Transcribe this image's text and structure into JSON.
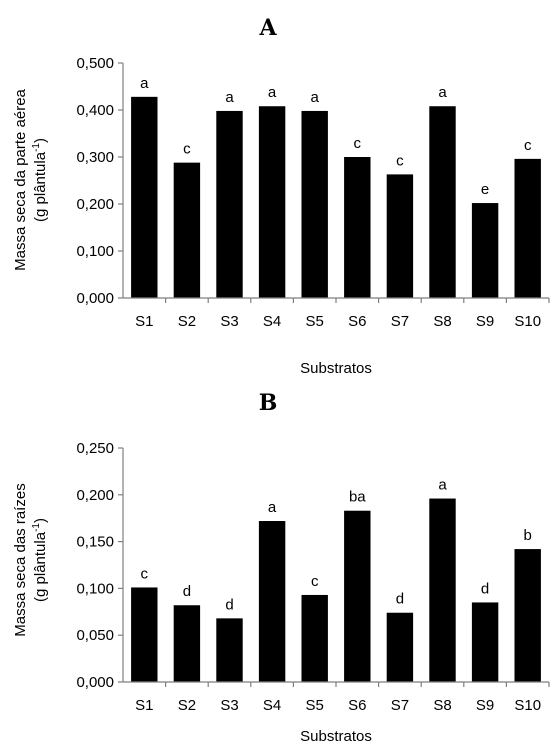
{
  "chart_data": [
    {
      "type": "bar",
      "panel_label": "A",
      "categories": [
        "S1",
        "S2",
        "S3",
        "S4",
        "S5",
        "S6",
        "S7",
        "S8",
        "S9",
        "S10"
      ],
      "values": [
        0.428,
        0.288,
        0.398,
        0.408,
        0.398,
        0.3,
        0.263,
        0.408,
        0.202,
        0.296
      ],
      "bar_labels": [
        "a",
        "c",
        "a",
        "a",
        "a",
        "c",
        "c",
        "a",
        "e",
        "c"
      ],
      "xlabel": "Substratos",
      "ylabel_line1": "Massa seca da parte aérea",
      "ylabel_line2_main": "(g plântula",
      "ylabel_line2_sup": "-1",
      "ylabel_line2_end": ")",
      "ylim": [
        0,
        0.5
      ],
      "yticks": [
        "0,000",
        "0,100",
        "0,200",
        "0,300",
        "0,400",
        "0,500"
      ],
      "bar_color": "#000000"
    },
    {
      "type": "bar",
      "panel_label": "B",
      "categories": [
        "S1",
        "S2",
        "S3",
        "S4",
        "S5",
        "S6",
        "S7",
        "S8",
        "S9",
        "S10"
      ],
      "values": [
        0.101,
        0.082,
        0.068,
        0.172,
        0.093,
        0.183,
        0.074,
        0.196,
        0.085,
        0.142
      ],
      "bar_labels": [
        "c",
        "d",
        "d",
        "a",
        "c",
        "ba",
        "d",
        "a",
        "d",
        "b"
      ],
      "xlabel": "Substratos",
      "ylabel_line1": "Massa seca das raízes",
      "ylabel_line2_main": "(g plântula",
      "ylabel_line2_sup": "-1",
      "ylabel_line2_end": ")",
      "ylim": [
        0,
        0.25
      ],
      "yticks": [
        "0,000",
        "0,050",
        "0,100",
        "0,150",
        "0,200",
        "0,250"
      ],
      "bar_color": "#000000"
    }
  ]
}
